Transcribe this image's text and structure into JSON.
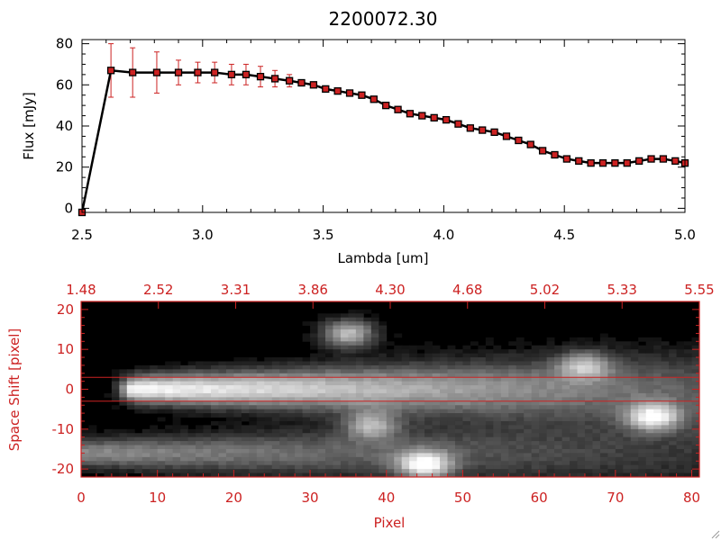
{
  "chart_data": [
    {
      "type": "line",
      "title": "2200072.30",
      "xlabel": "Lambda [um]",
      "ylabel": "Flux [mJy]",
      "xlim": [
        2.5,
        5.0
      ],
      "ylim": [
        -2,
        82
      ],
      "x_ticks": [
        "2.5",
        "3.0",
        "3.5",
        "4.0",
        "4.5",
        "5.0"
      ],
      "y_ticks": [
        "0",
        "20",
        "40",
        "60",
        "80"
      ],
      "grid": false,
      "series": [
        {
          "line_color": "#000000",
          "marker_color": "#cc2222",
          "x": [
            2.5,
            2.62,
            2.71,
            2.81,
            2.9,
            2.98,
            3.05,
            3.12,
            3.18,
            3.24,
            3.3,
            3.36,
            3.41,
            3.46,
            3.51,
            3.56,
            3.61,
            3.66,
            3.71,
            3.76,
            3.81,
            3.86,
            3.91,
            3.96,
            4.01,
            4.06,
            4.11,
            4.16,
            4.21,
            4.26,
            4.31,
            4.36,
            4.41,
            4.46,
            4.51,
            4.56,
            4.61,
            4.66,
            4.71,
            4.76,
            4.81,
            4.86,
            4.91,
            4.96,
            5.0
          ],
          "y": [
            -2,
            67,
            66,
            66,
            66,
            66,
            66,
            65,
            65,
            64,
            63,
            62,
            61,
            60,
            58,
            57,
            56,
            55,
            53,
            50,
            48,
            46,
            45,
            44,
            43,
            41,
            39,
            38,
            37,
            35,
            33,
            31,
            28,
            26,
            24,
            23,
            22,
            22,
            22,
            22,
            23,
            24,
            24,
            23,
            22
          ],
          "yerr": [
            0,
            13,
            12,
            10,
            6,
            5,
            5,
            5,
            5,
            5,
            4,
            3,
            1,
            1,
            1,
            1,
            1,
            1,
            1,
            1,
            1,
            1,
            1,
            1,
            1,
            1,
            1,
            1,
            1,
            1,
            1,
            1,
            1,
            1,
            1,
            1,
            1,
            1,
            1,
            1,
            1,
            1,
            1,
            1,
            1
          ]
        }
      ]
    },
    {
      "type": "heatmap",
      "xlabel": "Pixel",
      "ylabel": "Space Shift [pixel]",
      "xlim": [
        0,
        81
      ],
      "ylim": [
        -22,
        22
      ],
      "x_ticks": [
        "0",
        "10",
        "20",
        "30",
        "40",
        "50",
        "60",
        "70",
        "80"
      ],
      "y_ticks": [
        "-20",
        "-10",
        "0",
        "10",
        "20"
      ],
      "top_axis_ticks": [
        "1.48",
        "2.52",
        "3.31",
        "3.86",
        "4.30",
        "4.68",
        "5.02",
        "5.33",
        "5.55"
      ],
      "colormap": "grayscale",
      "frame_color": "#cc2222",
      "extraction_window_y": [
        -3,
        3
      ],
      "features": [
        {
          "kind": "trace",
          "y": 0,
          "x_start": 7,
          "x_end": 81,
          "peak": 1.0
        },
        {
          "kind": "trace",
          "y": -16,
          "x_start": 0,
          "x_end": 81,
          "peak": 0.55
        },
        {
          "kind": "blob",
          "x": 35,
          "y": 14,
          "peak": 0.75
        },
        {
          "kind": "blob",
          "x": 38,
          "y": -9,
          "peak": 0.6
        },
        {
          "kind": "blob",
          "x": 45,
          "y": -19,
          "peak": 0.85
        },
        {
          "kind": "blob",
          "x": 66,
          "y": 6,
          "peak": 0.55
        },
        {
          "kind": "blob",
          "x": 75,
          "y": -7,
          "peak": 0.8
        }
      ]
    }
  ]
}
